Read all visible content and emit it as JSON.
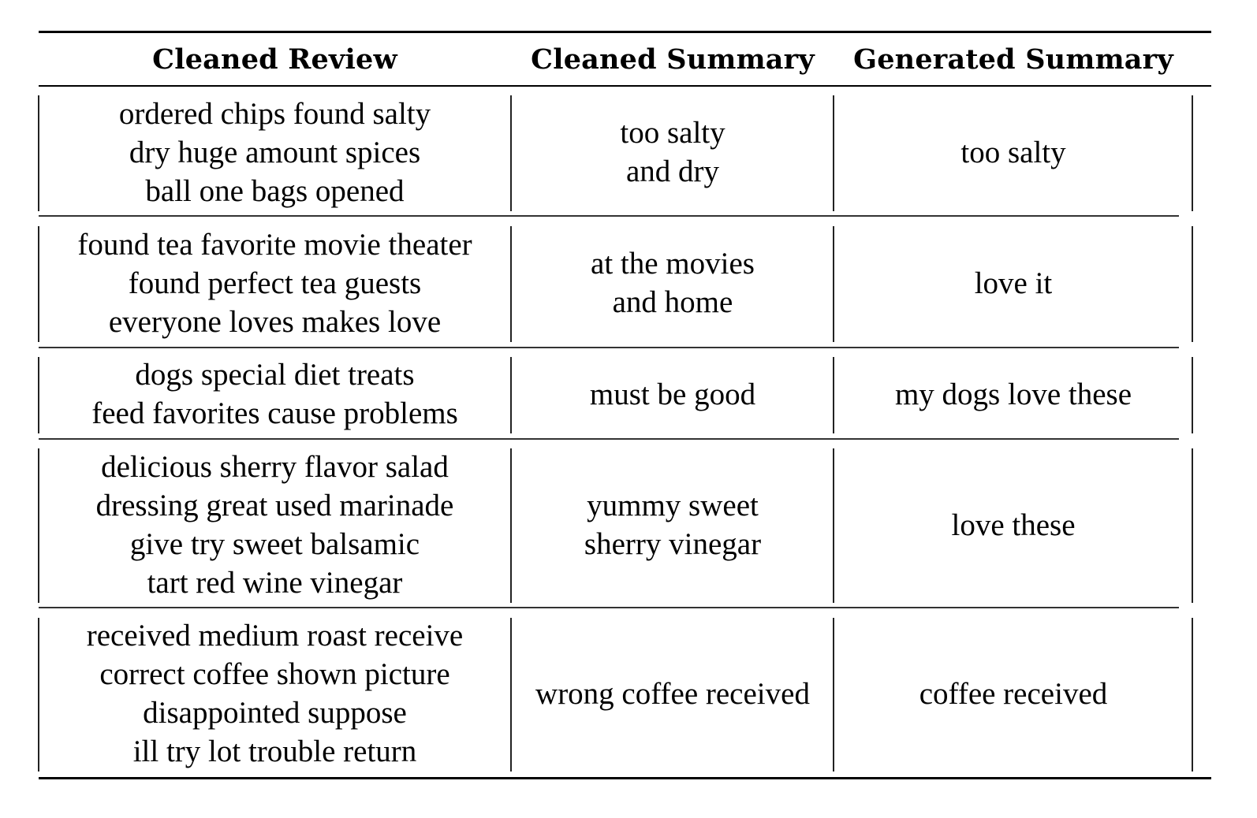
{
  "table": {
    "headers": [
      "Cleaned Review",
      "Cleaned Summary",
      "Generated Summary"
    ],
    "rows": [
      {
        "review": "ordered chips found salty\ndry huge amount spices\nball one bags opened",
        "cleaned_summary": "too salty\nand dry",
        "generated_summary": "too salty"
      },
      {
        "review": "found tea favorite movie theater\nfound perfect tea guests\neveryone loves makes love",
        "cleaned_summary": "at the movies\nand home",
        "generated_summary": "love it"
      },
      {
        "review": "dogs special diet treats\nfeed favorites cause problems",
        "cleaned_summary": "must be good",
        "generated_summary": "my dogs love these"
      },
      {
        "review": "delicious sherry flavor salad\ndressing great used marinade\ngive try sweet balsamic\ntart red wine vinegar",
        "cleaned_summary": "yummy sweet\nsherry vinegar",
        "generated_summary": "love these"
      },
      {
        "review": "received medium roast receive\ncorrect coffee shown picture\ndisappointed suppose\nill try lot trouble return",
        "cleaned_summary": "wrong coffee received",
        "generated_summary": "coffee received"
      }
    ]
  }
}
